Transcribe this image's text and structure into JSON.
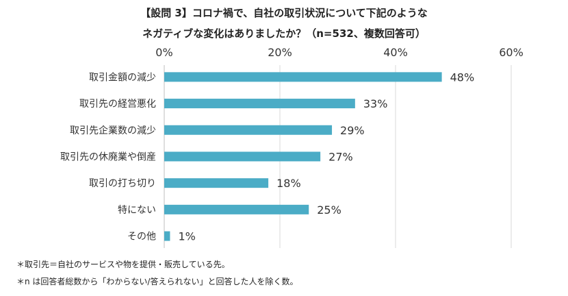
{
  "title_line1": "【設問 3】コロナ禍で、自社の取引状況について下記のような",
  "title_line2": "ネガティブな変化はありましたか？（n=532、複数回答可）",
  "chart_data": {
    "type": "bar",
    "orientation": "horizontal",
    "categories": [
      "取引金額の減少",
      "取引先の経営悪化",
      "取引先企業数の減少",
      "取引先の休廃業や倒産",
      "取引の打ち切り",
      "特にない",
      "その他"
    ],
    "values": [
      48,
      33,
      29,
      27,
      18,
      25,
      1
    ],
    "value_labels": [
      "48%",
      "33%",
      "29%",
      "27%",
      "18%",
      "25%",
      "1%"
    ],
    "x_ticks": [
      0,
      20,
      40,
      60
    ],
    "x_tick_labels": [
      "0%",
      "20%",
      "40%",
      "60%"
    ],
    "xlim": [
      0,
      60
    ],
    "axis_position": "top",
    "grid": true,
    "color": "#4bacc6"
  },
  "notes": [
    "＊取引先＝自社のサービスや物を提供・販売している先。",
    "＊n は回答者総数から「わからない/答えられない」と回答した人を除く数。"
  ]
}
